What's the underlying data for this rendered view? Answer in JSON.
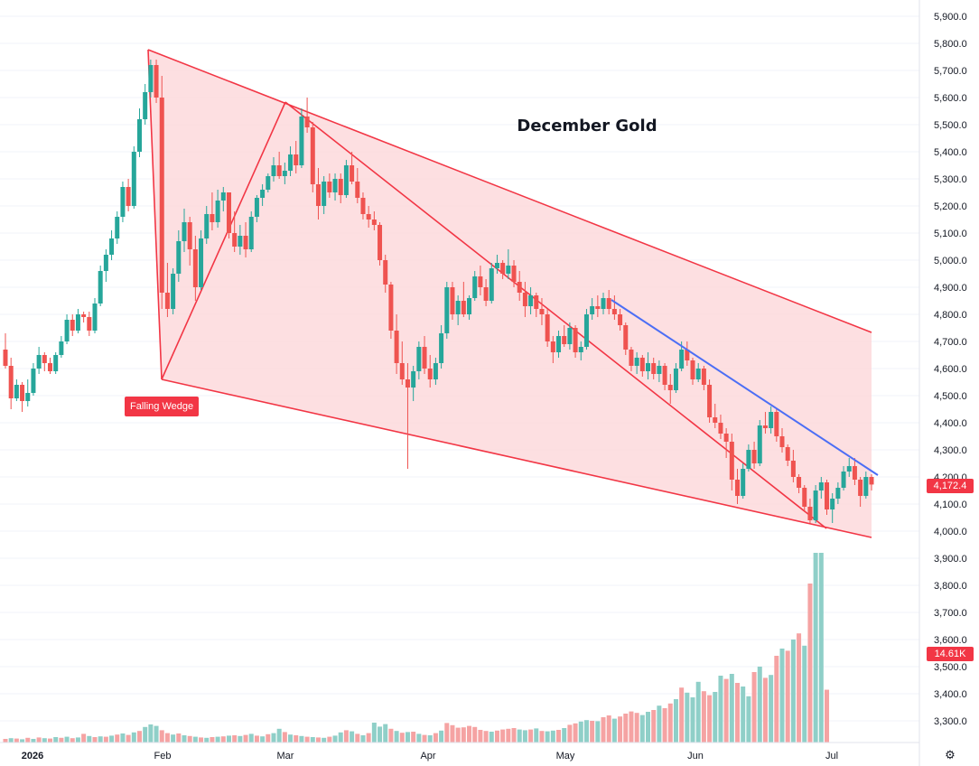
{
  "colors": {
    "up": "#26a69a",
    "down": "#ef5350",
    "volume_up": "#8fcfc8",
    "volume_down": "#f5a3a3",
    "wedge_fill": "#fcd7da",
    "wedge_line": "#f23645",
    "trend_line": "#4c6ef5"
  },
  "chart_data": {
    "type": "candlestick",
    "title": "December Gold",
    "annotation": "Falling Wedge",
    "last_price_label": "4,172.4",
    "volume_label": "14.61K",
    "y_ticks": [
      "5,900.0",
      "5,800.0",
      "5,700.0",
      "5,600.0",
      "5,500.0",
      "5,400.0",
      "5,300.0",
      "5,200.0",
      "5,100.0",
      "5,000.0",
      "4,900.0",
      "4,800.0",
      "4,700.0",
      "4,600.0",
      "4,500.0",
      "4,400.0",
      "4,300.0",
      "4,200.0",
      "4,100.0",
      "4,000.0",
      "3,900.0",
      "3,800.0",
      "3,700.0",
      "3,600.0",
      "3,500.0",
      "3,400.0",
      "3,300.0"
    ],
    "x_ticks": [
      "2026",
      "Feb",
      "Mar",
      "Apr",
      "May",
      "Jun",
      "Jul"
    ],
    "ylim": [
      3240,
      5940
    ],
    "candles": [
      [
        4670,
        4730,
        4600,
        4610
      ],
      [
        4610,
        4640,
        4450,
        4490
      ],
      [
        4490,
        4560,
        4480,
        4540
      ],
      [
        4540,
        4550,
        4440,
        4480
      ],
      [
        4480,
        4560,
        4460,
        4510
      ],
      [
        4510,
        4620,
        4500,
        4600
      ],
      [
        4600,
        4680,
        4580,
        4650
      ],
      [
        4650,
        4660,
        4590,
        4620
      ],
      [
        4620,
        4640,
        4580,
        4590
      ],
      [
        4590,
        4660,
        4580,
        4650
      ],
      [
        4650,
        4720,
        4640,
        4700
      ],
      [
        4700,
        4800,
        4690,
        4780
      ],
      [
        4780,
        4800,
        4720,
        4740
      ],
      [
        4740,
        4820,
        4730,
        4800
      ],
      [
        4800,
        4810,
        4770,
        4790
      ],
      [
        4790,
        4810,
        4720,
        4740
      ],
      [
        4740,
        4860,
        4730,
        4840
      ],
      [
        4840,
        4980,
        4830,
        4960
      ],
      [
        4960,
        5040,
        4920,
        5020
      ],
      [
        5020,
        5110,
        5000,
        5080
      ],
      [
        5080,
        5180,
        5060,
        5160
      ],
      [
        5160,
        5290,
        5140,
        5270
      ],
      [
        5270,
        5300,
        5180,
        5200
      ],
      [
        5200,
        5420,
        5190,
        5400
      ],
      [
        5400,
        5560,
        5380,
        5520
      ],
      [
        5520,
        5650,
        5500,
        5620
      ],
      [
        5620,
        5740,
        5600,
        5720
      ],
      [
        5720,
        5740,
        5580,
        5600
      ],
      [
        5600,
        5680,
        4820,
        4880
      ],
      [
        4880,
        4990,
        4790,
        4820
      ],
      [
        4820,
        4970,
        4800,
        4950
      ],
      [
        4950,
        5110,
        4920,
        5070
      ],
      [
        5070,
        5190,
        5030,
        5140
      ],
      [
        5140,
        5160,
        4980,
        5040
      ],
      [
        5040,
        5090,
        4850,
        4900
      ],
      [
        4900,
        5110,
        4890,
        5080
      ],
      [
        5080,
        5200,
        5060,
        5170
      ],
      [
        5170,
        5250,
        5110,
        5140
      ],
      [
        5140,
        5260,
        5120,
        5220
      ],
      [
        5220,
        5270,
        5180,
        5250
      ],
      [
        5250,
        5240,
        5080,
        5100
      ],
      [
        5100,
        5180,
        5030,
        5050
      ],
      [
        5050,
        5130,
        5020,
        5090
      ],
      [
        5090,
        5140,
        5010,
        5040
      ],
      [
        5040,
        5180,
        5030,
        5160
      ],
      [
        5160,
        5240,
        5140,
        5230
      ],
      [
        5230,
        5280,
        5200,
        5260
      ],
      [
        5260,
        5320,
        5250,
        5310
      ],
      [
        5310,
        5380,
        5290,
        5350
      ],
      [
        5350,
        5400,
        5300,
        5310
      ],
      [
        5310,
        5360,
        5280,
        5330
      ],
      [
        5330,
        5420,
        5310,
        5390
      ],
      [
        5390,
        5440,
        5320,
        5350
      ],
      [
        5350,
        5560,
        5340,
        5530
      ],
      [
        5530,
        5600,
        5470,
        5490
      ],
      [
        5490,
        5510,
        5250,
        5280
      ],
      [
        5280,
        5340,
        5150,
        5200
      ],
      [
        5200,
        5310,
        5170,
        5290
      ],
      [
        5290,
        5320,
        5230,
        5250
      ],
      [
        5250,
        5320,
        5220,
        5300
      ],
      [
        5300,
        5320,
        5210,
        5240
      ],
      [
        5240,
        5370,
        5230,
        5350
      ],
      [
        5350,
        5400,
        5280,
        5290
      ],
      [
        5290,
        5340,
        5210,
        5230
      ],
      [
        5230,
        5250,
        5150,
        5170
      ],
      [
        5170,
        5200,
        5120,
        5150
      ],
      [
        5150,
        5180,
        5110,
        5130
      ],
      [
        5130,
        5140,
        4980,
        5000
      ],
      [
        5000,
        5020,
        4880,
        4910
      ],
      [
        4910,
        4920,
        4710,
        4740
      ],
      [
        4740,
        4800,
        4580,
        4620
      ],
      [
        4620,
        4700,
        4540,
        4560
      ],
      [
        4560,
        4620,
        4230,
        4530
      ],
      [
        4530,
        4610,
        4480,
        4590
      ],
      [
        4590,
        4700,
        4560,
        4680
      ],
      [
        4680,
        4720,
        4580,
        4600
      ],
      [
        4600,
        4650,
        4530,
        4560
      ],
      [
        4560,
        4640,
        4540,
        4620
      ],
      [
        4620,
        4760,
        4600,
        4730
      ],
      [
        4730,
        4920,
        4710,
        4900
      ],
      [
        4900,
        4920,
        4780,
        4800
      ],
      [
        4800,
        4870,
        4760,
        4850
      ],
      [
        4850,
        4920,
        4790,
        4800
      ],
      [
        4800,
        4870,
        4780,
        4860
      ],
      [
        4860,
        4960,
        4850,
        4940
      ],
      [
        4940,
        4980,
        4870,
        4900
      ],
      [
        4900,
        4930,
        4830,
        4850
      ],
      [
        4850,
        4990,
        4840,
        4970
      ],
      [
        4970,
        5020,
        4950,
        4990
      ],
      [
        4990,
        5000,
        4930,
        4950
      ],
      [
        4950,
        5040,
        4930,
        4980
      ],
      [
        4980,
        5000,
        4900,
        4920
      ],
      [
        4920,
        4960,
        4850,
        4880
      ],
      [
        4880,
        4920,
        4790,
        4830
      ],
      [
        4830,
        4900,
        4800,
        4870
      ],
      [
        4870,
        4880,
        4790,
        4820
      ],
      [
        4820,
        4860,
        4760,
        4800
      ],
      [
        4800,
        4820,
        4680,
        4700
      ],
      [
        4700,
        4720,
        4620,
        4660
      ],
      [
        4660,
        4740,
        4640,
        4720
      ],
      [
        4720,
        4760,
        4680,
        4690
      ],
      [
        4690,
        4770,
        4670,
        4750
      ],
      [
        4750,
        4760,
        4640,
        4660
      ],
      [
        4660,
        4700,
        4630,
        4680
      ],
      [
        4680,
        4820,
        4670,
        4800
      ],
      [
        4800,
        4860,
        4780,
        4830
      ],
      [
        4830,
        4870,
        4790,
        4820
      ],
      [
        4820,
        4880,
        4800,
        4860
      ],
      [
        4860,
        4890,
        4800,
        4820
      ],
      [
        4820,
        4870,
        4780,
        4800
      ],
      [
        4800,
        4820,
        4740,
        4760
      ],
      [
        4760,
        4770,
        4650,
        4670
      ],
      [
        4670,
        4680,
        4590,
        4610
      ],
      [
        4610,
        4660,
        4580,
        4640
      ],
      [
        4640,
        4650,
        4570,
        4590
      ],
      [
        4590,
        4660,
        4560,
        4620
      ],
      [
        4620,
        4640,
        4560,
        4580
      ],
      [
        4580,
        4630,
        4550,
        4610
      ],
      [
        4610,
        4620,
        4520,
        4540
      ],
      [
        4540,
        4580,
        4470,
        4520
      ],
      [
        4520,
        4620,
        4510,
        4600
      ],
      [
        4600,
        4700,
        4590,
        4670
      ],
      [
        4670,
        4700,
        4610,
        4630
      ],
      [
        4630,
        4640,
        4540,
        4560
      ],
      [
        4560,
        4620,
        4550,
        4600
      ],
      [
        4600,
        4610,
        4520,
        4540
      ],
      [
        4540,
        4560,
        4400,
        4420
      ],
      [
        4420,
        4470,
        4380,
        4400
      ],
      [
        4400,
        4430,
        4340,
        4360
      ],
      [
        4360,
        4380,
        4270,
        4330
      ],
      [
        4330,
        4360,
        4150,
        4190
      ],
      [
        4190,
        4230,
        4100,
        4130
      ],
      [
        4130,
        4250,
        4120,
        4230
      ],
      [
        4230,
        4320,
        4220,
        4300
      ],
      [
        4300,
        4330,
        4230,
        4250
      ],
      [
        4250,
        4410,
        4240,
        4390
      ],
      [
        4390,
        4440,
        4360,
        4380
      ],
      [
        4380,
        4460,
        4360,
        4440
      ],
      [
        4440,
        4450,
        4330,
        4350
      ],
      [
        4350,
        4380,
        4290,
        4310
      ],
      [
        4310,
        4320,
        4240,
        4260
      ],
      [
        4260,
        4300,
        4180,
        4200
      ],
      [
        4200,
        4210,
        4140,
        4160
      ],
      [
        4160,
        4170,
        4070,
        4090
      ],
      [
        4090,
        4120,
        4030,
        4040
      ],
      [
        4040,
        4170,
        4030,
        4150
      ],
      [
        4150,
        4200,
        4120,
        4180
      ],
      [
        4180,
        4190,
        4060,
        4080
      ],
      [
        4080,
        4140,
        4030,
        4120
      ],
      [
        4120,
        4180,
        4100,
        4160
      ],
      [
        4160,
        4240,
        4150,
        4220
      ],
      [
        4220,
        4270,
        4200,
        4240
      ],
      [
        4240,
        4270,
        4170,
        4190
      ],
      [
        4190,
        4200,
        4090,
        4130
      ],
      [
        4130,
        4220,
        4120,
        4200
      ],
      [
        4200,
        4210,
        4150,
        4172
      ]
    ],
    "volume": [
      [
        1.0,
        0
      ],
      [
        1.2,
        1
      ],
      [
        1.1,
        0
      ],
      [
        0.9,
        1
      ],
      [
        1.3,
        0
      ],
      [
        1.0,
        1
      ],
      [
        1.4,
        0
      ],
      [
        1.2,
        1
      ],
      [
        1.1,
        0
      ],
      [
        1.5,
        1
      ],
      [
        1.3,
        0
      ],
      [
        1.6,
        1
      ],
      [
        1.2,
        0
      ],
      [
        1.4,
        1
      ],
      [
        2.4,
        0
      ],
      [
        1.8,
        1
      ],
      [
        1.5,
        0
      ],
      [
        1.7,
        1
      ],
      [
        1.6,
        0
      ],
      [
        1.9,
        1
      ],
      [
        2.2,
        0
      ],
      [
        2.5,
        1
      ],
      [
        2.1,
        0
      ],
      [
        2.8,
        1
      ],
      [
        3.2,
        0
      ],
      [
        4.3,
        1
      ],
      [
        5.0,
        1
      ],
      [
        4.6,
        1
      ],
      [
        3.4,
        0
      ],
      [
        2.6,
        0
      ],
      [
        2.2,
        1
      ],
      [
        2.5,
        0
      ],
      [
        2.0,
        1
      ],
      [
        1.8,
        0
      ],
      [
        1.6,
        1
      ],
      [
        1.4,
        0
      ],
      [
        1.3,
        1
      ],
      [
        1.5,
        0
      ],
      [
        1.6,
        1
      ],
      [
        1.7,
        0
      ],
      [
        1.9,
        1
      ],
      [
        2.0,
        0
      ],
      [
        1.8,
        1
      ],
      [
        2.1,
        0
      ],
      [
        2.4,
        1
      ],
      [
        1.9,
        0
      ],
      [
        1.7,
        1
      ],
      [
        2.3,
        0
      ],
      [
        2.6,
        1
      ],
      [
        3.8,
        1
      ],
      [
        2.9,
        0
      ],
      [
        2.2,
        1
      ],
      [
        2.0,
        0
      ],
      [
        1.8,
        1
      ],
      [
        1.6,
        0
      ],
      [
        1.5,
        1
      ],
      [
        1.4,
        0
      ],
      [
        1.3,
        1
      ],
      [
        1.6,
        0
      ],
      [
        1.9,
        1
      ],
      [
        2.8,
        1
      ],
      [
        3.4,
        0
      ],
      [
        3.1,
        1
      ],
      [
        2.4,
        0
      ],
      [
        2.0,
        1
      ],
      [
        2.6,
        0
      ],
      [
        5.5,
        1
      ],
      [
        4.4,
        1
      ],
      [
        5.1,
        1
      ],
      [
        3.8,
        0
      ],
      [
        3.2,
        1
      ],
      [
        2.7,
        0
      ],
      [
        2.9,
        1
      ],
      [
        3.0,
        0
      ],
      [
        2.4,
        1
      ],
      [
        2.1,
        0
      ],
      [
        2.0,
        1
      ],
      [
        2.6,
        0
      ],
      [
        3.3,
        1
      ],
      [
        5.4,
        0
      ],
      [
        4.8,
        0
      ],
      [
        4.1,
        0
      ],
      [
        4.2,
        0
      ],
      [
        4.6,
        0
      ],
      [
        4.3,
        0
      ],
      [
        3.5,
        0
      ],
      [
        3.2,
        0
      ],
      [
        3.0,
        1
      ],
      [
        3.3,
        0
      ],
      [
        3.6,
        0
      ],
      [
        3.8,
        0
      ],
      [
        4.0,
        0
      ],
      [
        3.6,
        1
      ],
      [
        3.4,
        1
      ],
      [
        3.6,
        0
      ],
      [
        3.9,
        1
      ],
      [
        3.2,
        0
      ],
      [
        3.1,
        1
      ],
      [
        3.3,
        1
      ],
      [
        3.5,
        0
      ],
      [
        4.0,
        1
      ],
      [
        4.9,
        0
      ],
      [
        5.3,
        0
      ],
      [
        5.8,
        1
      ],
      [
        6.2,
        1
      ],
      [
        6.0,
        0
      ],
      [
        5.9,
        1
      ],
      [
        7.0,
        0
      ],
      [
        7.5,
        0
      ],
      [
        6.6,
        1
      ],
      [
        7.2,
        0
      ],
      [
        8.0,
        0
      ],
      [
        8.6,
        0
      ],
      [
        8.2,
        0
      ],
      [
        7.6,
        1
      ],
      [
        8.5,
        1
      ],
      [
        9.0,
        0
      ],
      [
        10.2,
        1
      ],
      [
        9.5,
        0
      ],
      [
        10.8,
        0
      ],
      [
        12.0,
        1
      ],
      [
        15.2,
        0
      ],
      [
        13.8,
        1
      ],
      [
        12.5,
        1
      ],
      [
        16.8,
        1
      ],
      [
        14.2,
        0
      ],
      [
        13.1,
        0
      ],
      [
        14.0,
        1
      ],
      [
        18.5,
        1
      ],
      [
        17.6,
        0
      ],
      [
        19.0,
        1
      ],
      [
        16.5,
        0
      ],
      [
        15.5,
        1
      ],
      [
        12.8,
        1
      ],
      [
        19.5,
        0
      ],
      [
        21.0,
        1
      ],
      [
        17.9,
        0
      ],
      [
        18.7,
        1
      ],
      [
        24.0,
        0
      ],
      [
        26.0,
        1
      ],
      [
        25.4,
        0
      ],
      [
        28.5,
        1
      ],
      [
        30.2,
        0
      ],
      [
        26.8,
        1
      ],
      [
        44.0,
        0
      ],
      [
        55.0,
        1
      ],
      [
        53.5,
        1
      ],
      [
        14.61,
        0
      ]
    ]
  }
}
